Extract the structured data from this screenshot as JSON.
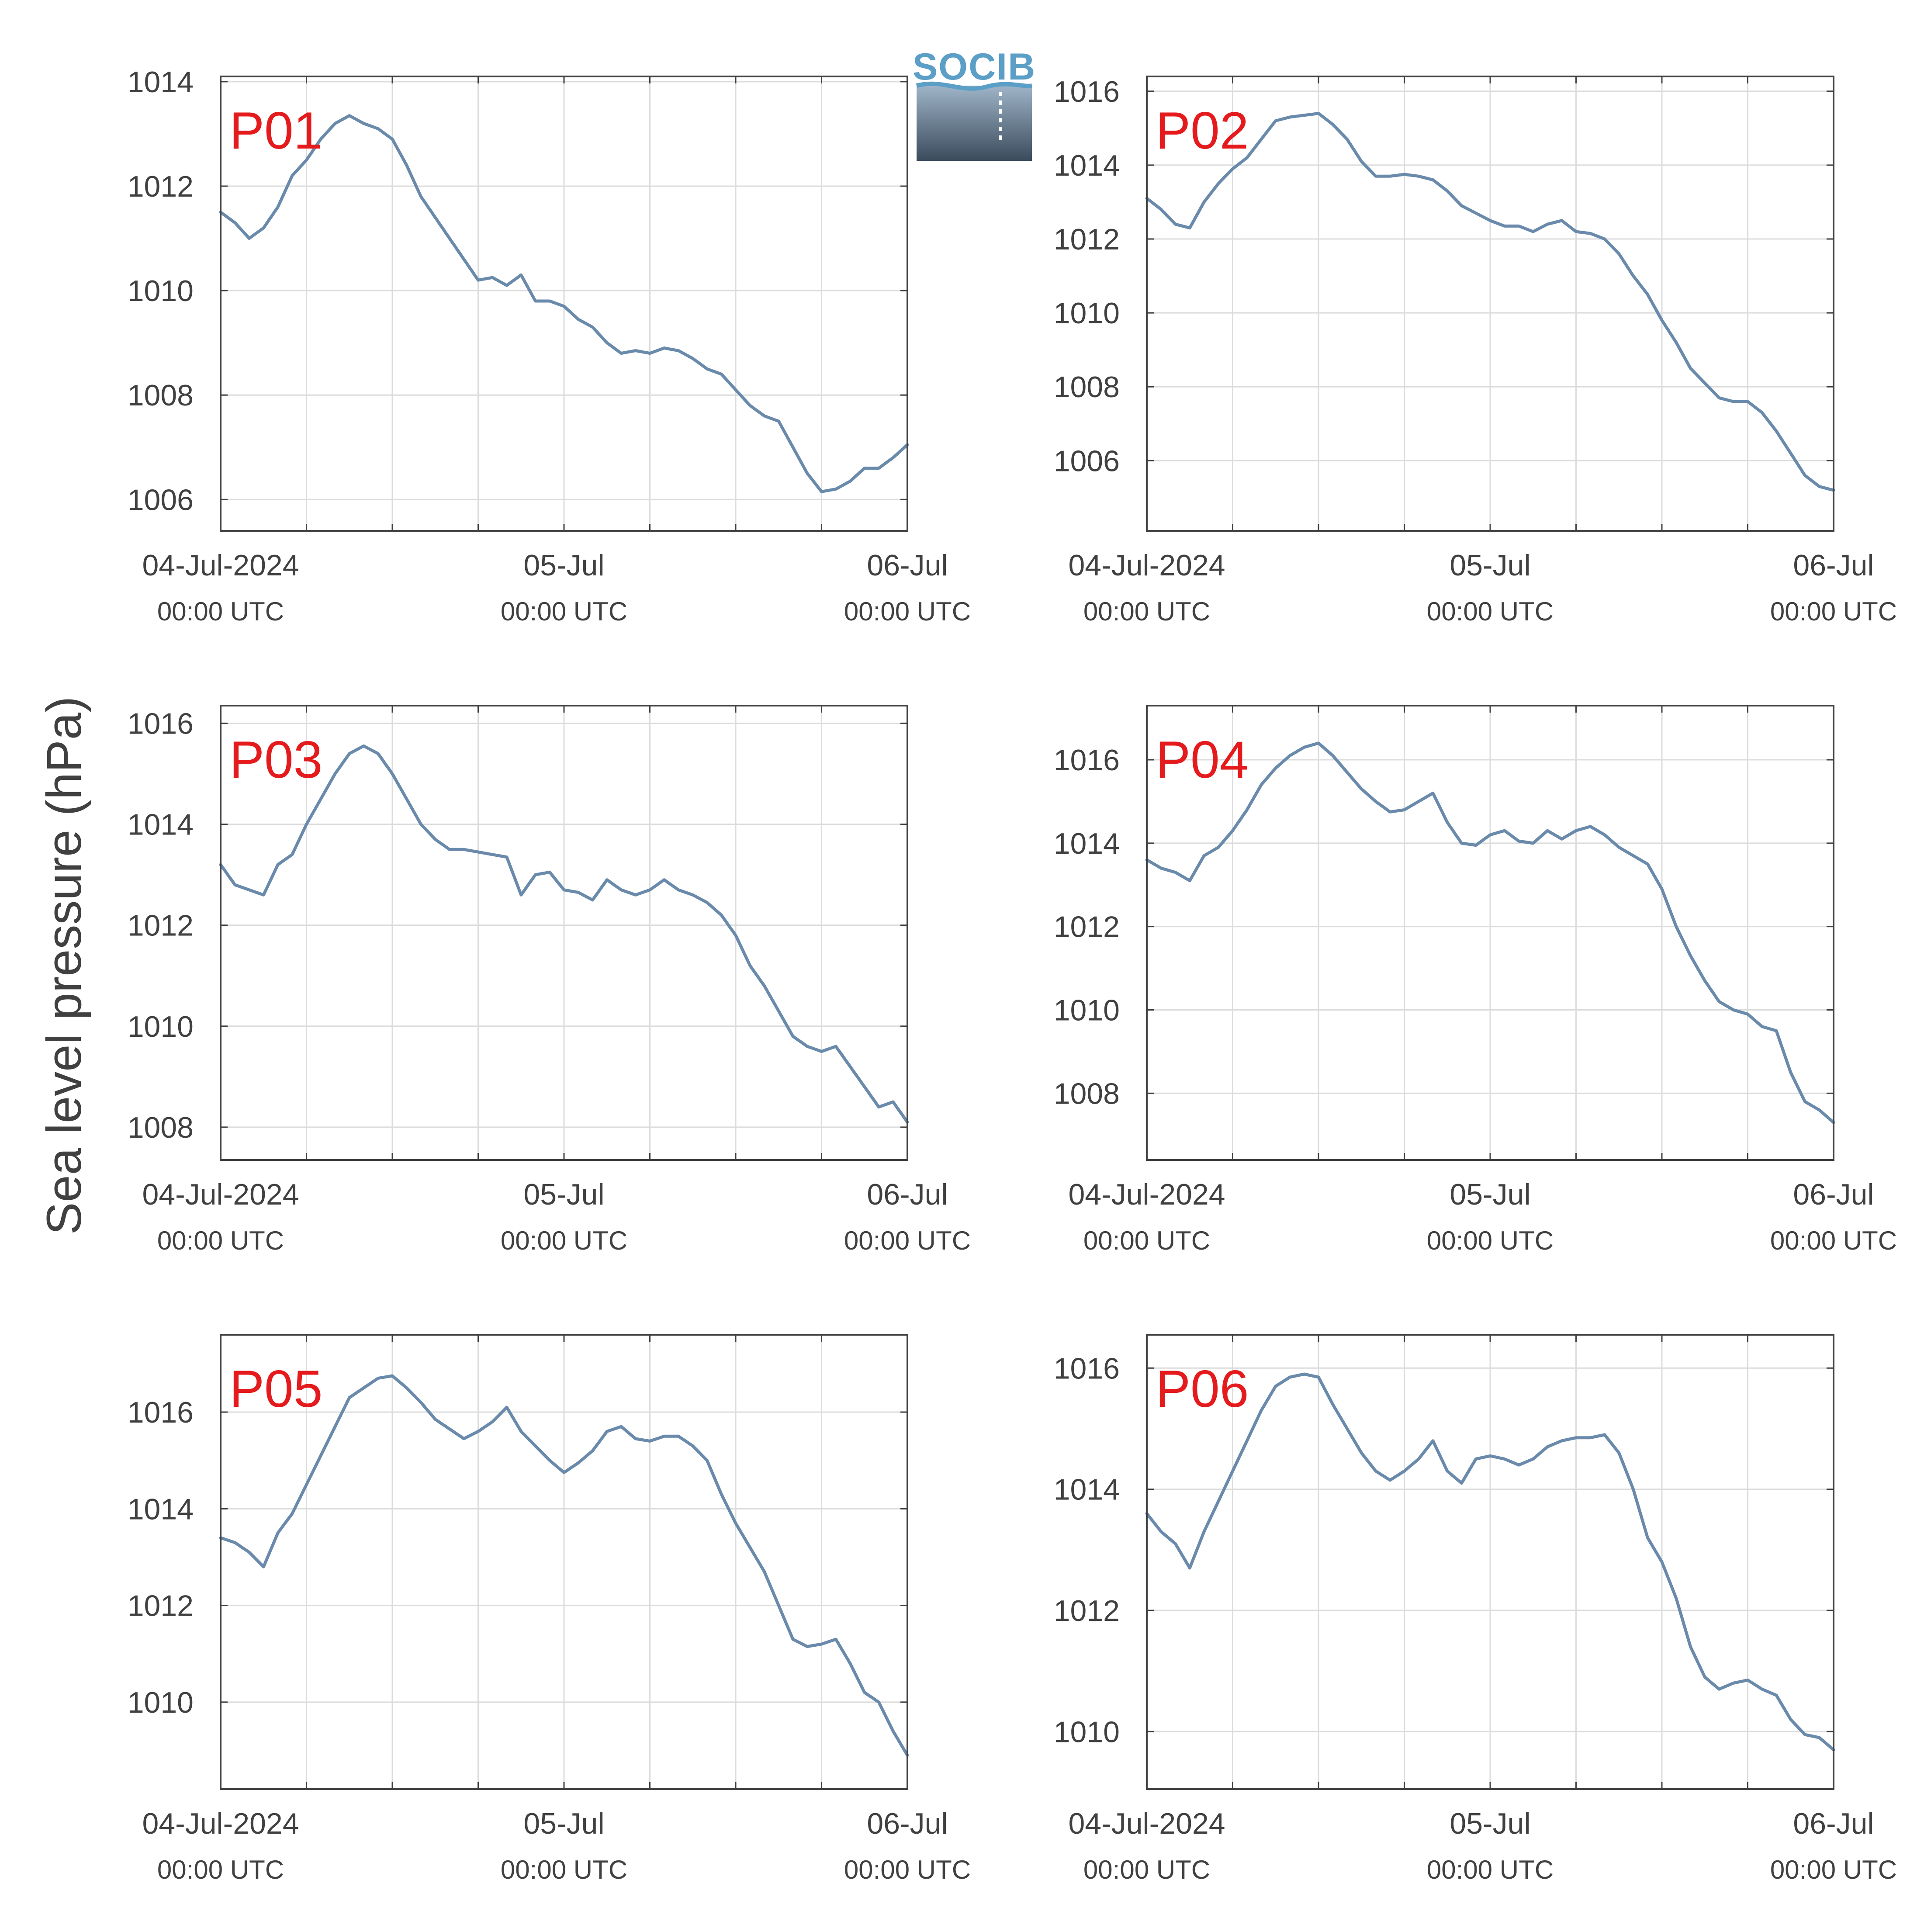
{
  "figure": {
    "ylabel": "Sea level pressure (hPa)",
    "logo_text": "SOCIB",
    "panel_label_color": "#e41a1c",
    "line_color": "#6a8aab",
    "grid_color": "#dcdcdc",
    "axis_color": "#404040"
  },
  "chart_data": [
    {
      "type": "line",
      "title": "P01",
      "x_ticks": [
        {
          "label": "04-Jul-2024",
          "sub": "00:00 UTC"
        },
        {
          "label": "05-Jul",
          "sub": "00:00 UTC"
        },
        {
          "label": "06-Jul",
          "sub": "00:00 UTC"
        }
      ],
      "x_unit": "hours since 04-Jul-2024 00:00 UTC",
      "xlim": [
        0,
        48
      ],
      "ylim": [
        1005.4,
        1014.1
      ],
      "y_ticks": [
        1006,
        1008,
        1010,
        1012,
        1014
      ],
      "grid": true,
      "series": [
        {
          "x": [
            0,
            1,
            2,
            3,
            4,
            5,
            6,
            7,
            8,
            9,
            10,
            11,
            12,
            13,
            14,
            15,
            16,
            17,
            18,
            19,
            20,
            21,
            22,
            23,
            24,
            25,
            26,
            27,
            28,
            29,
            30,
            31,
            32,
            33,
            34,
            35,
            36,
            37,
            38,
            39,
            40,
            41,
            42,
            43,
            44,
            45,
            46,
            47,
            48
          ],
          "y": [
            1011.5,
            1011.3,
            1011.0,
            1011.2,
            1011.6,
            1012.2,
            1012.5,
            1012.9,
            1013.2,
            1013.35,
            1013.2,
            1013.1,
            1012.9,
            1012.4,
            1011.8,
            1011.4,
            1011.0,
            1010.6,
            1010.2,
            1010.25,
            1010.1,
            1010.3,
            1009.8,
            1009.8,
            1009.7,
            1009.45,
            1009.3,
            1009.0,
            1008.8,
            1008.85,
            1008.8,
            1008.9,
            1008.85,
            1008.7,
            1008.5,
            1008.4,
            1008.1,
            1007.8,
            1007.6,
            1007.5,
            1007.0,
            1006.5,
            1006.15,
            1006.2,
            1006.35,
            1006.6,
            1006.6,
            1006.8,
            1007.05
          ]
        }
      ]
    },
    {
      "type": "line",
      "title": "P02",
      "x_ticks": [
        {
          "label": "04-Jul-2024",
          "sub": "00:00 UTC"
        },
        {
          "label": "05-Jul",
          "sub": "00:00 UTC"
        },
        {
          "label": "06-Jul",
          "sub": "00:00 UTC"
        }
      ],
      "x_unit": "hours since 04-Jul-2024 00:00 UTC",
      "xlim": [
        0,
        48
      ],
      "ylim": [
        1004.1,
        1016.4
      ],
      "y_ticks": [
        1006,
        1008,
        1010,
        1012,
        1014,
        1016
      ],
      "grid": true,
      "series": [
        {
          "x": [
            0,
            1,
            2,
            3,
            4,
            5,
            6,
            7,
            8,
            9,
            10,
            11,
            12,
            13,
            14,
            15,
            16,
            17,
            18,
            19,
            20,
            21,
            22,
            23,
            24,
            25,
            26,
            27,
            28,
            29,
            30,
            31,
            32,
            33,
            34,
            35,
            36,
            37,
            38,
            39,
            40,
            41,
            42,
            43,
            44,
            45,
            46,
            47,
            48
          ],
          "y": [
            1013.1,
            1012.8,
            1012.4,
            1012.3,
            1013.0,
            1013.5,
            1013.9,
            1014.2,
            1014.7,
            1015.2,
            1015.3,
            1015.35,
            1015.4,
            1015.1,
            1014.7,
            1014.1,
            1013.7,
            1013.7,
            1013.75,
            1013.7,
            1013.6,
            1013.3,
            1012.9,
            1012.7,
            1012.5,
            1012.35,
            1012.35,
            1012.2,
            1012.4,
            1012.5,
            1012.2,
            1012.15,
            1012.0,
            1011.6,
            1011.0,
            1010.5,
            1009.8,
            1009.2,
            1008.5,
            1008.1,
            1007.7,
            1007.6,
            1007.6,
            1007.3,
            1006.8,
            1006.2,
            1005.6,
            1005.3,
            1005.2
          ]
        }
      ]
    },
    {
      "type": "line",
      "title": "P03",
      "x_ticks": [
        {
          "label": "04-Jul-2024",
          "sub": "00:00 UTC"
        },
        {
          "label": "05-Jul",
          "sub": "00:00 UTC"
        },
        {
          "label": "06-Jul",
          "sub": "00:00 UTC"
        }
      ],
      "x_unit": "hours since 04-Jul-2024 00:00 UTC",
      "xlim": [
        0,
        48
      ],
      "ylim": [
        1007.35,
        1016.35
      ],
      "y_ticks": [
        1008,
        1010,
        1012,
        1014,
        1016
      ],
      "grid": true,
      "series": [
        {
          "x": [
            0,
            1,
            2,
            3,
            4,
            5,
            6,
            7,
            8,
            9,
            10,
            11,
            12,
            13,
            14,
            15,
            16,
            17,
            18,
            19,
            20,
            21,
            22,
            23,
            24,
            25,
            26,
            27,
            28,
            29,
            30,
            31,
            32,
            33,
            34,
            35,
            36,
            37,
            38,
            39,
            40,
            41,
            42,
            43,
            44,
            45,
            46,
            47,
            48
          ],
          "y": [
            1013.2,
            1012.8,
            1012.7,
            1012.6,
            1013.2,
            1013.4,
            1014.0,
            1014.5,
            1015.0,
            1015.4,
            1015.55,
            1015.4,
            1015.0,
            1014.5,
            1014.0,
            1013.7,
            1013.5,
            1013.5,
            1013.45,
            1013.4,
            1013.35,
            1012.6,
            1013.0,
            1013.05,
            1012.7,
            1012.65,
            1012.5,
            1012.9,
            1012.7,
            1012.6,
            1012.7,
            1012.9,
            1012.7,
            1012.6,
            1012.45,
            1012.2,
            1011.8,
            1011.2,
            1010.8,
            1010.3,
            1009.8,
            1009.6,
            1009.5,
            1009.6,
            1009.2,
            1008.8,
            1008.4,
            1008.5,
            1008.1
          ]
        }
      ]
    },
    {
      "type": "line",
      "title": "P04",
      "x_ticks": [
        {
          "label": "04-Jul-2024",
          "sub": "00:00 UTC"
        },
        {
          "label": "05-Jul",
          "sub": "00:00 UTC"
        },
        {
          "label": "06-Jul",
          "sub": "00:00 UTC"
        }
      ],
      "x_unit": "hours since 04-Jul-2024 00:00 UTC",
      "xlim": [
        0,
        48
      ],
      "ylim": [
        1006.4,
        1017.3
      ],
      "y_ticks": [
        1008,
        1010,
        1012,
        1014,
        1016
      ],
      "grid": true,
      "series": [
        {
          "x": [
            0,
            1,
            2,
            3,
            4,
            5,
            6,
            7,
            8,
            9,
            10,
            11,
            12,
            13,
            14,
            15,
            16,
            17,
            18,
            19,
            20,
            21,
            22,
            23,
            24,
            25,
            26,
            27,
            28,
            29,
            30,
            31,
            32,
            33,
            34,
            35,
            36,
            37,
            38,
            39,
            40,
            41,
            42,
            43,
            44,
            45,
            46,
            47,
            48
          ],
          "y": [
            1013.6,
            1013.4,
            1013.3,
            1013.1,
            1013.7,
            1013.9,
            1014.3,
            1014.8,
            1015.4,
            1015.8,
            1016.1,
            1016.3,
            1016.4,
            1016.1,
            1015.7,
            1015.3,
            1015.0,
            1014.75,
            1014.8,
            1015.0,
            1015.2,
            1014.5,
            1014.0,
            1013.95,
            1014.2,
            1014.3,
            1014.05,
            1014.0,
            1014.3,
            1014.1,
            1014.3,
            1014.4,
            1014.2,
            1013.9,
            1013.7,
            1013.5,
            1012.9,
            1012.0,
            1011.3,
            1010.7,
            1010.2,
            1010.0,
            1009.9,
            1009.6,
            1009.5,
            1008.5,
            1007.8,
            1007.6,
            1007.3
          ]
        }
      ]
    },
    {
      "type": "line",
      "title": "P05",
      "x_ticks": [
        {
          "label": "04-Jul-2024",
          "sub": "00:00 UTC"
        },
        {
          "label": "05-Jul",
          "sub": "00:00 UTC"
        },
        {
          "label": "06-Jul",
          "sub": "00:00 UTC"
        }
      ],
      "x_unit": "hours since 04-Jul-2024 00:00 UTC",
      "xlim": [
        0,
        48
      ],
      "ylim": [
        1008.2,
        1017.6
      ],
      "y_ticks": [
        1010,
        1012,
        1014,
        1016
      ],
      "grid": true,
      "series": [
        {
          "x": [
            0,
            1,
            2,
            3,
            4,
            5,
            6,
            7,
            8,
            9,
            10,
            11,
            12,
            13,
            14,
            15,
            16,
            17,
            18,
            19,
            20,
            21,
            22,
            23,
            24,
            25,
            26,
            27,
            28,
            29,
            30,
            31,
            32,
            33,
            34,
            35,
            36,
            37,
            38,
            39,
            40,
            41,
            42,
            43,
            44,
            45,
            46,
            47,
            48
          ],
          "y": [
            1013.4,
            1013.3,
            1013.1,
            1012.8,
            1013.5,
            1013.9,
            1014.5,
            1015.1,
            1015.7,
            1016.3,
            1016.5,
            1016.7,
            1016.75,
            1016.5,
            1016.2,
            1015.85,
            1015.65,
            1015.45,
            1015.6,
            1015.8,
            1016.1,
            1015.6,
            1015.3,
            1015.0,
            1014.75,
            1014.95,
            1015.2,
            1015.6,
            1015.7,
            1015.45,
            1015.4,
            1015.5,
            1015.5,
            1015.3,
            1015.0,
            1014.3,
            1013.7,
            1013.2,
            1012.7,
            1012.0,
            1011.3,
            1011.15,
            1011.2,
            1011.3,
            1010.8,
            1010.2,
            1010.0,
            1009.4,
            1008.9
          ]
        }
      ]
    },
    {
      "type": "line",
      "title": "P06",
      "x_ticks": [
        {
          "label": "04-Jul-2024",
          "sub": "00:00 UTC"
        },
        {
          "label": "05-Jul",
          "sub": "00:00 UTC"
        },
        {
          "label": "06-Jul",
          "sub": "00:00 UTC"
        }
      ],
      "x_unit": "hours since 04-Jul-2024 00:00 UTC",
      "xlim": [
        0,
        48
      ],
      "ylim": [
        1009.05,
        1016.55
      ],
      "y_ticks": [
        1010,
        1012,
        1014,
        1016
      ],
      "grid": true,
      "series": [
        {
          "x": [
            0,
            1,
            2,
            3,
            4,
            5,
            6,
            7,
            8,
            9,
            10,
            11,
            12,
            13,
            14,
            15,
            16,
            17,
            18,
            19,
            20,
            21,
            22,
            23,
            24,
            25,
            26,
            27,
            28,
            29,
            30,
            31,
            32,
            33,
            34,
            35,
            36,
            37,
            38,
            39,
            40,
            41,
            42,
            43,
            44,
            45,
            46,
            47,
            48
          ],
          "y": [
            1013.6,
            1013.3,
            1013.1,
            1012.7,
            1013.3,
            1013.8,
            1014.3,
            1014.8,
            1015.3,
            1015.7,
            1015.85,
            1015.9,
            1015.85,
            1015.4,
            1015.0,
            1014.6,
            1014.3,
            1014.15,
            1014.3,
            1014.5,
            1014.8,
            1014.3,
            1014.1,
            1014.5,
            1014.55,
            1014.5,
            1014.4,
            1014.5,
            1014.7,
            1014.8,
            1014.85,
            1014.85,
            1014.9,
            1014.6,
            1014.0,
            1013.2,
            1012.8,
            1012.2,
            1011.4,
            1010.9,
            1010.7,
            1010.8,
            1010.85,
            1010.7,
            1010.6,
            1010.2,
            1009.95,
            1009.9,
            1009.7
          ]
        }
      ]
    }
  ]
}
